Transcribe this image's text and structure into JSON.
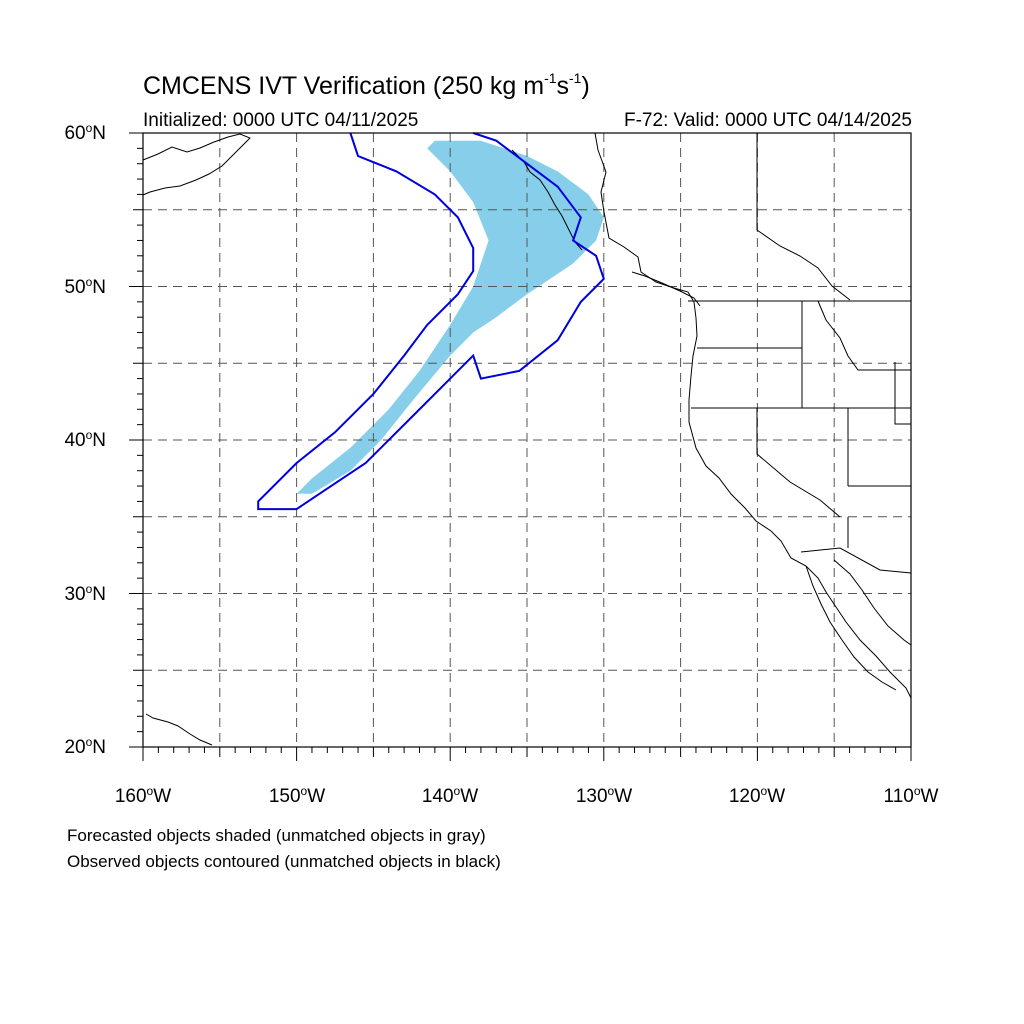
{
  "title": {
    "main": "CMCENS IVT Verification (250 kg m",
    "exp1": "-1",
    "mid": "s",
    "exp2": "-1",
    "close": ")"
  },
  "subtitle_left": "Initialized: 0000 UTC 04/11/2025",
  "subtitle_right": "F-72: Valid: 0000 UTC 04/14/2025",
  "axes": {
    "lon_range": [
      -160,
      -110
    ],
    "lat_range": [
      20,
      60
    ],
    "lat_labels": [
      {
        "value": 60,
        "num": "60",
        "deg": "o",
        "hem": "N"
      },
      {
        "value": 50,
        "num": "50",
        "deg": "o",
        "hem": "N"
      },
      {
        "value": 40,
        "num": "40",
        "deg": "o",
        "hem": "N"
      },
      {
        "value": 30,
        "num": "30",
        "deg": "o",
        "hem": "N"
      },
      {
        "value": 20,
        "num": "20",
        "deg": "o",
        "hem": "N"
      }
    ],
    "lon_labels": [
      {
        "value": -160,
        "num": "160",
        "deg": "o",
        "hem": "W"
      },
      {
        "value": -150,
        "num": "150",
        "deg": "o",
        "hem": "W"
      },
      {
        "value": -140,
        "num": "140",
        "deg": "o",
        "hem": "W"
      },
      {
        "value": -130,
        "num": "130",
        "deg": "o",
        "hem": "W"
      },
      {
        "value": -120,
        "num": "120",
        "deg": "o",
        "hem": "W"
      },
      {
        "value": -110,
        "num": "110",
        "deg": "o",
        "hem": "W"
      }
    ],
    "gridline_interval_deg": 5,
    "gridline_style": "dashed"
  },
  "footnotes": [
    "Forecasted objects shaded (unmatched objects in gray)",
    "Observed objects contoured (unmatched objects in black)"
  ],
  "colors": {
    "forecast_fill": "#87ceeb",
    "observed_contour": "#0000dd",
    "coastline": "#000000",
    "grid": "#555555"
  },
  "chart_data": {
    "type": "map",
    "projection": "cylindrical-equidistant",
    "forecast_object": {
      "label": "Forecasted objects shaded",
      "matched": true,
      "outline_lonlat": [
        [
          -141,
          59.5
        ],
        [
          -138,
          59.5
        ],
        [
          -135,
          58.5
        ],
        [
          -133,
          57.5
        ],
        [
          -131,
          56
        ],
        [
          -130,
          54.5
        ],
        [
          -130.5,
          53
        ],
        [
          -132,
          51.5
        ],
        [
          -135,
          49.5
        ],
        [
          -137,
          48
        ],
        [
          -138.5,
          47
        ],
        [
          -140,
          45.5
        ],
        [
          -142.5,
          42.5
        ],
        [
          -144.5,
          40
        ],
        [
          -146.5,
          38
        ],
        [
          -149,
          36.5
        ],
        [
          -150,
          36.5
        ],
        [
          -149,
          37.5
        ],
        [
          -146.5,
          39.5
        ],
        [
          -144,
          42
        ],
        [
          -142,
          44.5
        ],
        [
          -140,
          47.5
        ],
        [
          -138.5,
          50
        ],
        [
          -137.5,
          53
        ],
        [
          -138.5,
          55.5
        ],
        [
          -140,
          57.5
        ],
        [
          -141.5,
          59
        ]
      ]
    },
    "observed_object": {
      "label": "Observed objects contoured",
      "matched": true,
      "outline_lonlat": [
        [
          -146.5,
          60
        ],
        [
          -146,
          58.5
        ],
        [
          -143.5,
          57.5
        ],
        [
          -141,
          56
        ],
        [
          -139.5,
          54.5
        ],
        [
          -138.5,
          52.5
        ],
        [
          -138.5,
          51
        ],
        [
          -139.5,
          49.5
        ],
        [
          -141.5,
          47.5
        ],
        [
          -143,
          45.5
        ],
        [
          -145,
          43
        ],
        [
          -147.5,
          40.5
        ],
        [
          -150,
          38.5
        ],
        [
          -152.5,
          36
        ],
        [
          -152.5,
          35.5
        ],
        [
          -150,
          35.5
        ],
        [
          -148.5,
          36.5
        ],
        [
          -145.5,
          38.5
        ],
        [
          -142.5,
          41.5
        ],
        [
          -140,
          44
        ],
        [
          -138.5,
          45.5
        ],
        [
          -138,
          44
        ],
        [
          -135.5,
          44.5
        ],
        [
          -133,
          46.5
        ],
        [
          -131.5,
          49
        ],
        [
          -130,
          50.5
        ],
        [
          -130.5,
          52
        ],
        [
          -132,
          53
        ],
        [
          -131.5,
          54.5
        ],
        [
          -133,
          56.5
        ],
        [
          -135,
          58
        ],
        [
          -137,
          59.5
        ],
        [
          -138.5,
          60
        ]
      ]
    }
  }
}
